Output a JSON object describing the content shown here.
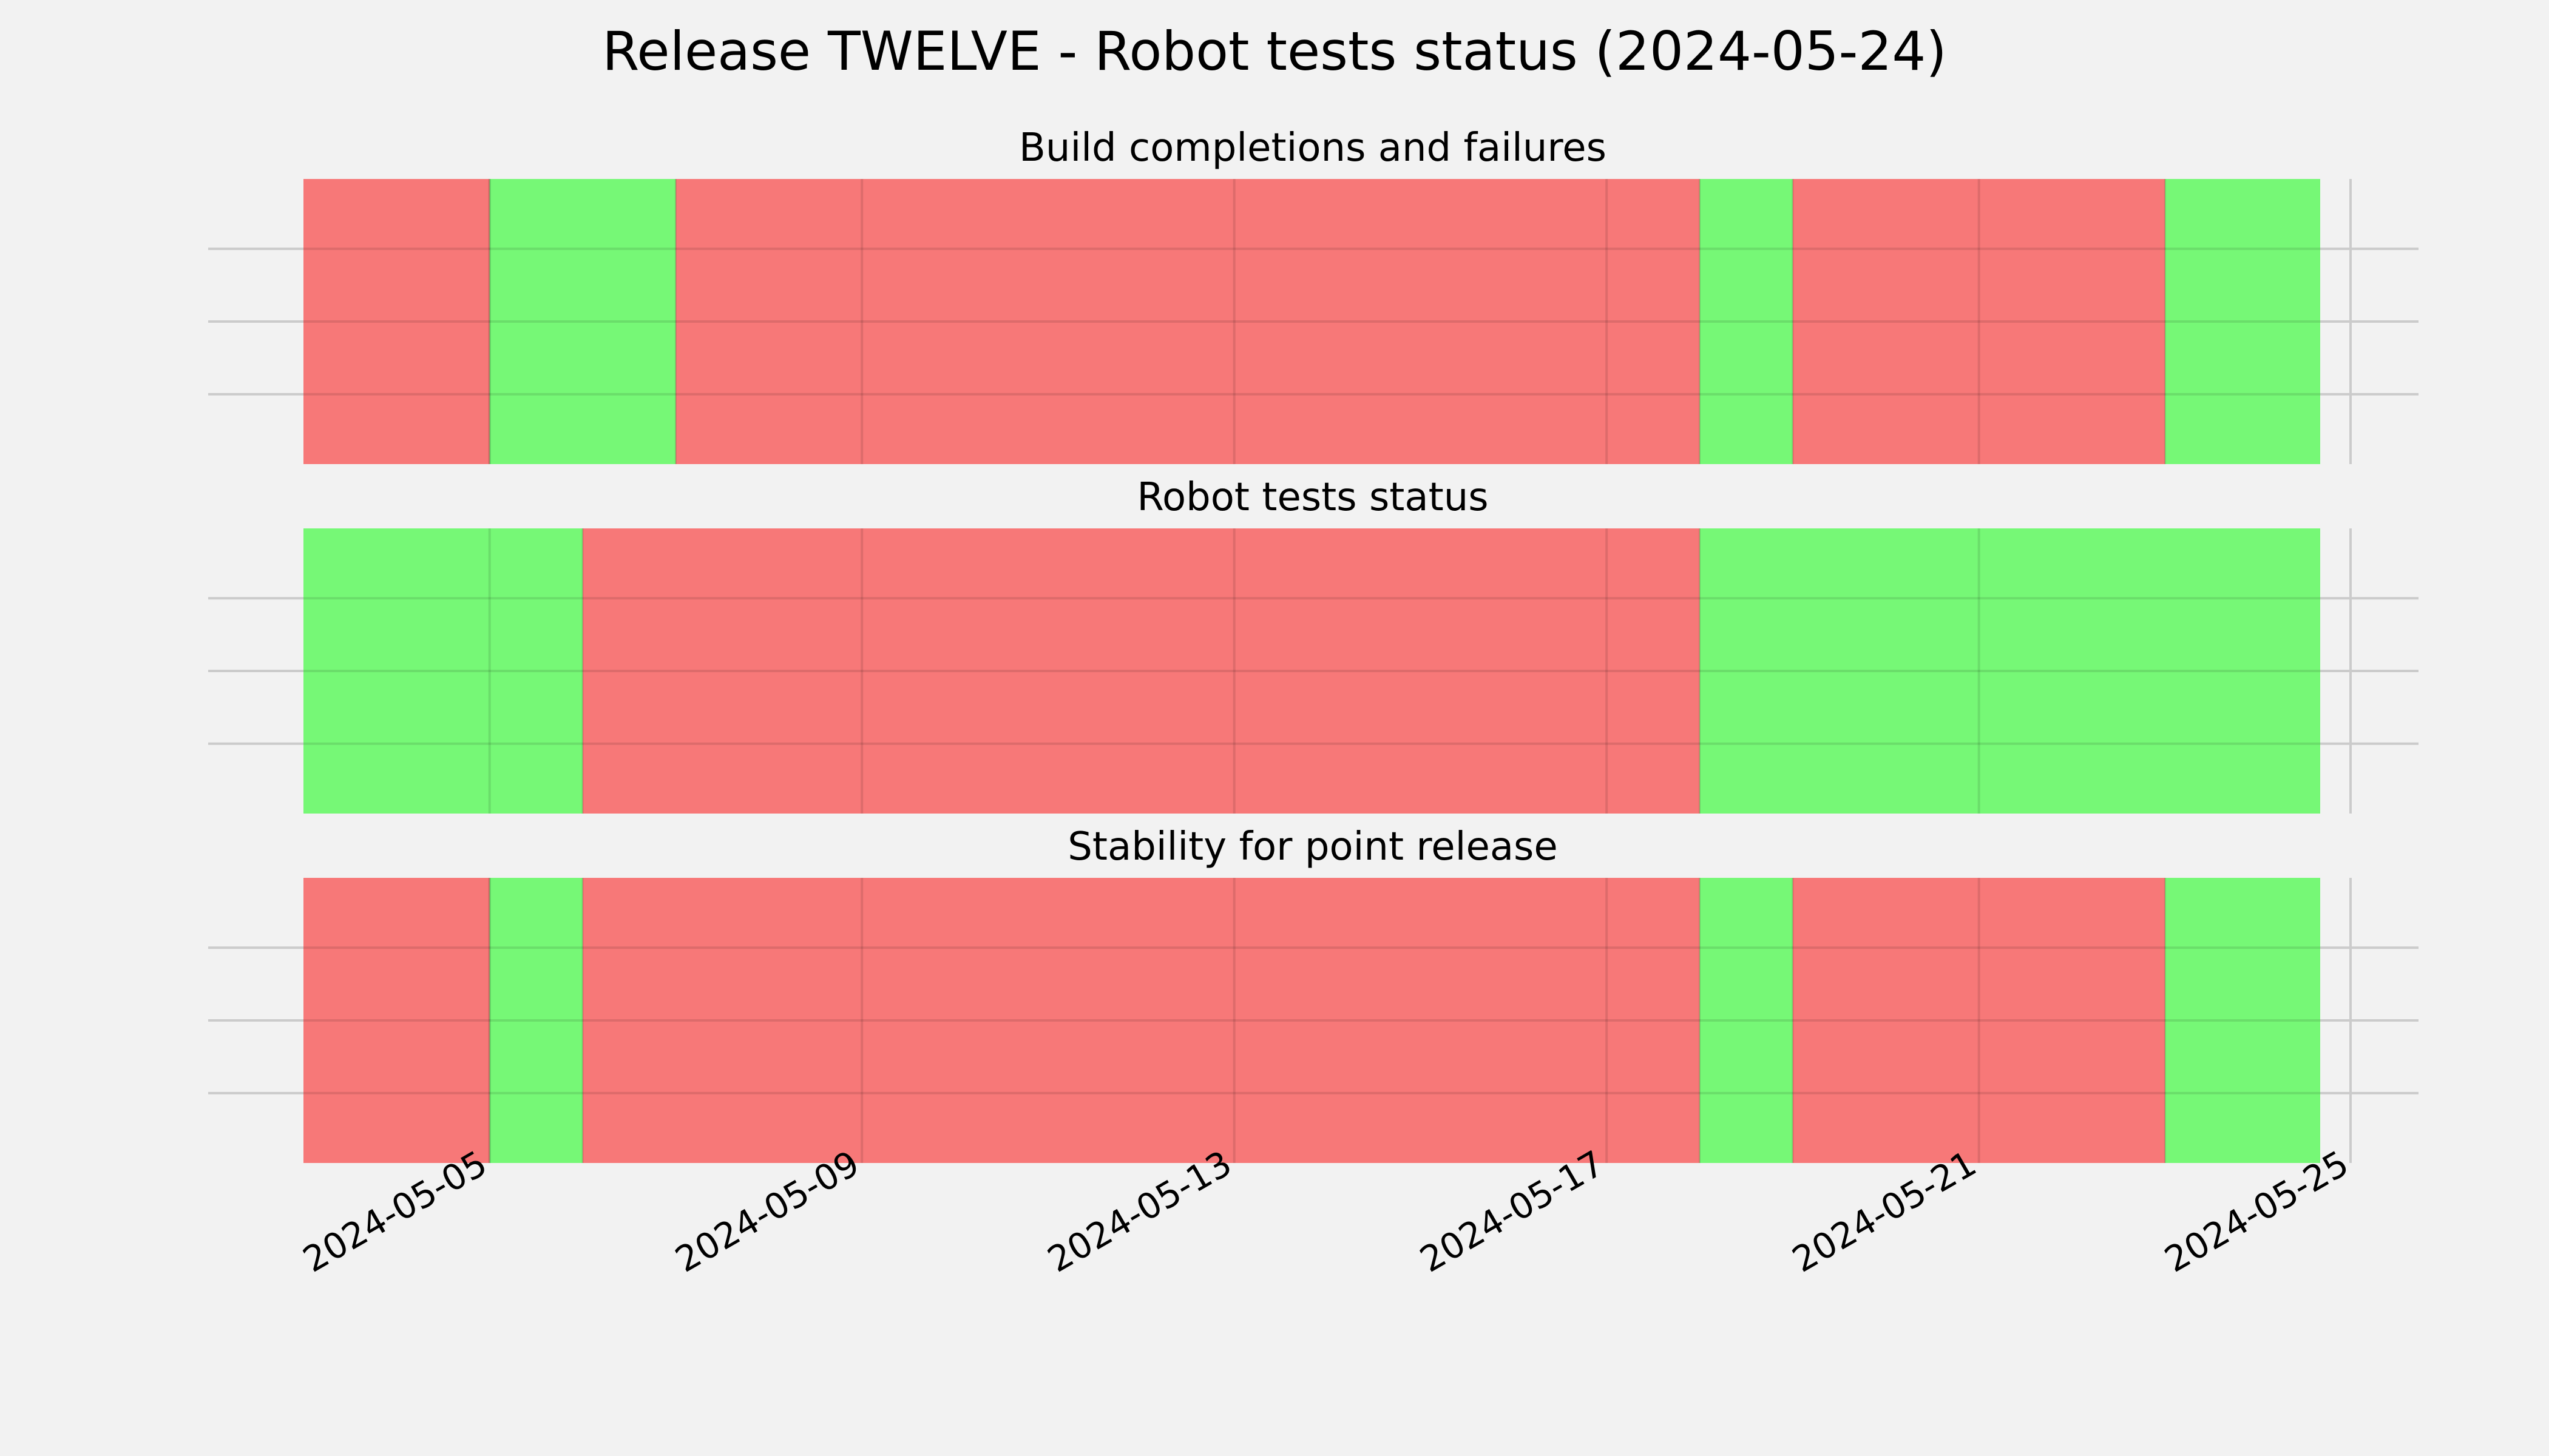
{
  "title": "Release TWELVE - Robot tests status (2024-05-24)",
  "colors": {
    "background": "#f2f2f2",
    "pass": "#76f876",
    "fail": "#f77878"
  },
  "chart_data": {
    "type": "timeline",
    "x_range": [
      "2024-05-03",
      "2024-05-25"
    ],
    "x_ticks": [
      "2024-05-05",
      "2024-05-09",
      "2024-05-13",
      "2024-05-17",
      "2024-05-21",
      "2024-05-25"
    ],
    "grid": true,
    "panels": [
      {
        "title": "Build completions and failures",
        "segments": [
          {
            "start": "2024-05-03",
            "end": "2024-05-05",
            "status": "fail"
          },
          {
            "start": "2024-05-05",
            "end": "2024-05-07",
            "status": "pass"
          },
          {
            "start": "2024-05-07",
            "end": "2024-05-18",
            "status": "fail"
          },
          {
            "start": "2024-05-18",
            "end": "2024-05-19",
            "status": "pass"
          },
          {
            "start": "2024-05-19",
            "end": "2024-05-23",
            "status": "fail"
          },
          {
            "start": "2024-05-23",
            "end": "2024-05-24 16:00",
            "status": "pass"
          }
        ]
      },
      {
        "title": "Robot tests status",
        "segments": [
          {
            "start": "2024-05-03",
            "end": "2024-05-06",
            "status": "pass"
          },
          {
            "start": "2024-05-06",
            "end": "2024-05-18",
            "status": "fail"
          },
          {
            "start": "2024-05-18",
            "end": "2024-05-24 16:00",
            "status": "pass"
          }
        ]
      },
      {
        "title": "Stability for point release",
        "segments": [
          {
            "start": "2024-05-03",
            "end": "2024-05-05",
            "status": "fail"
          },
          {
            "start": "2024-05-05",
            "end": "2024-05-06",
            "status": "pass"
          },
          {
            "start": "2024-05-06",
            "end": "2024-05-18",
            "status": "fail"
          },
          {
            "start": "2024-05-18",
            "end": "2024-05-19",
            "status": "pass"
          },
          {
            "start": "2024-05-19",
            "end": "2024-05-23",
            "status": "fail"
          },
          {
            "start": "2024-05-23",
            "end": "2024-05-24 16:00",
            "status": "pass"
          }
        ]
      }
    ]
  }
}
